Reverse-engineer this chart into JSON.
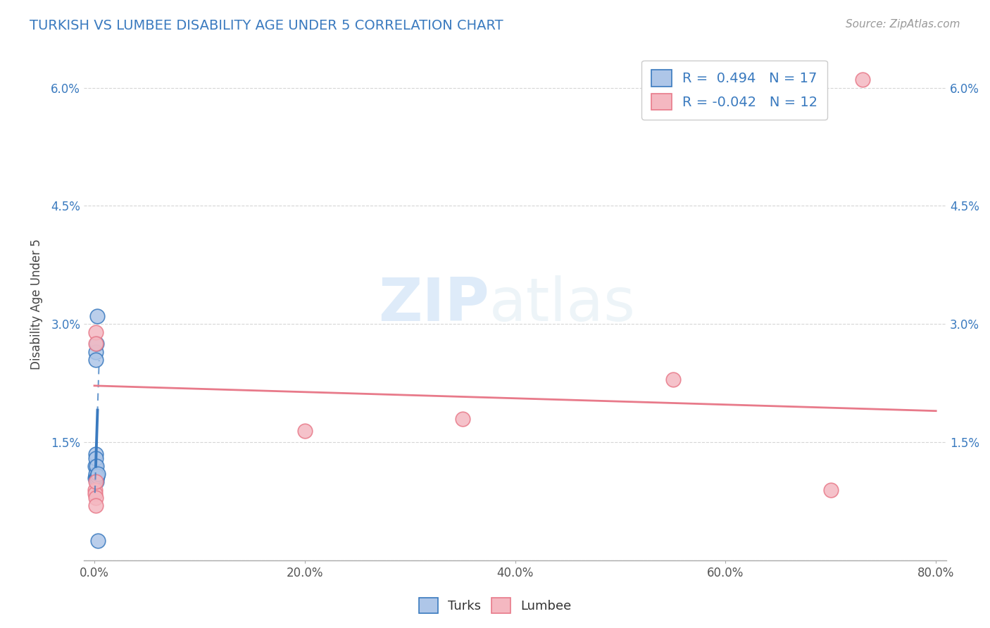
{
  "title": "TURKISH VS LUMBEE DISABILITY AGE UNDER 5 CORRELATION CHART",
  "source_text": "Source: ZipAtlas.com",
  "ylabel": "Disability Age Under 5",
  "xlim": [
    -1.0,
    81.0
  ],
  "ylim": [
    0.0,
    6.5
  ],
  "xticks": [
    0.0,
    20.0,
    40.0,
    60.0,
    80.0
  ],
  "xtick_labels": [
    "0.0%",
    "20.0%",
    "40.0%",
    "60.0%",
    "80.0%"
  ],
  "yticks": [
    0.0,
    1.5,
    3.0,
    4.5,
    6.0
  ],
  "ytick_labels": [
    "",
    "1.5%",
    "3.0%",
    "4.5%",
    "6.0%"
  ],
  "turks_R": 0.494,
  "turks_N": 17,
  "lumbee_R": -0.042,
  "lumbee_N": 12,
  "turks_color": "#aec6e8",
  "lumbee_color": "#f4b8c1",
  "turks_line_color": "#3a7abf",
  "lumbee_line_color": "#e87a8a",
  "legend_label_turks": "Turks",
  "legend_label_lumbee": "Lumbee",
  "watermark_zip": "ZIP",
  "watermark_atlas": "atlas",
  "background_color": "#ffffff",
  "grid_color": "#cccccc",
  "turks_x": [
    0.05,
    0.08,
    0.1,
    0.12,
    0.13,
    0.14,
    0.15,
    0.16,
    0.17,
    0.18,
    0.2,
    0.22,
    0.23,
    0.25,
    0.27,
    0.3,
    0.35
  ],
  "turks_y": [
    1.2,
    1.05,
    1.08,
    1.35,
    2.65,
    2.55,
    1.3,
    1.1,
    1.05,
    1.0,
    2.75,
    1.2,
    1.05,
    1.08,
    3.1,
    1.1,
    0.25
  ],
  "lumbee_x": [
    0.05,
    0.08,
    0.1,
    0.12,
    0.13,
    0.14,
    0.15,
    20.0,
    35.0,
    55.0,
    70.0,
    73.0
  ],
  "lumbee_y": [
    0.9,
    0.85,
    1.0,
    0.8,
    2.9,
    2.75,
    0.7,
    1.65,
    1.8,
    2.3,
    0.9,
    6.1
  ],
  "turks_reg_m": 4.2,
  "turks_reg_b": 0.65,
  "turks_solid_x0": 0.13,
  "turks_solid_x1": 0.3,
  "turks_dash_x0": 0.05,
  "turks_dash_x1": 0.45,
  "lumbee_reg_m": -0.004,
  "lumbee_reg_b": 2.22,
  "lumbee_line_x0": 0.0,
  "lumbee_line_x1": 80.0
}
